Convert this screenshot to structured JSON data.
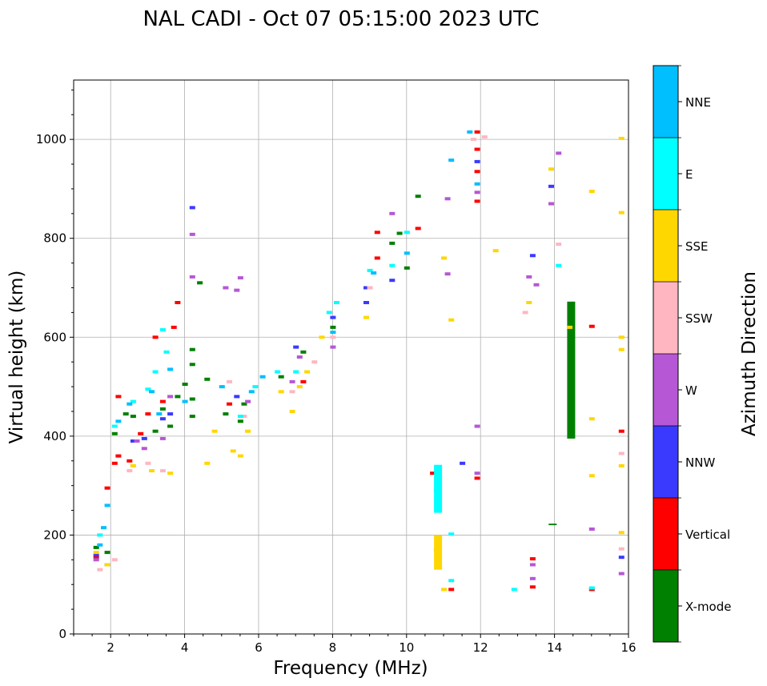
{
  "chart_data": {
    "type": "scatter",
    "title": "NAL CADI - Oct 07 05:15:00 2023 UTC",
    "xlabel": "Frequency (MHz)",
    "ylabel": "Virtual height (km)",
    "xlim": [
      1,
      16
    ],
    "ylim": [
      0,
      1120
    ],
    "xticks": [
      2,
      4,
      6,
      8,
      10,
      12,
      14,
      16
    ],
    "yticks": [
      0,
      200,
      400,
      600,
      800,
      1000
    ],
    "grid": true,
    "colorbar": {
      "label": "Azimuth Direction",
      "categories": [
        {
          "name": "X-mode",
          "color": "#008000"
        },
        {
          "name": "Vertical",
          "color": "#ff0000"
        },
        {
          "name": "NNW",
          "color": "#3a3aff"
        },
        {
          "name": "W",
          "color": "#b657d6"
        },
        {
          "name": "SSW",
          "color": "#ffb6c1"
        },
        {
          "name": "SSE",
          "color": "#ffd700"
        },
        {
          "name": "E",
          "color": "#00ffff"
        },
        {
          "name": "NNE",
          "color": "#00bfff"
        }
      ]
    },
    "series": [
      {
        "name": "X-mode",
        "points": [
          [
            1.6,
            175
          ],
          [
            1.9,
            165
          ],
          [
            2.1,
            405
          ],
          [
            2.4,
            445
          ],
          [
            2.6,
            440
          ],
          [
            3.2,
            410
          ],
          [
            3.4,
            455
          ],
          [
            3.6,
            420
          ],
          [
            3.8,
            480
          ],
          [
            4.0,
            505
          ],
          [
            4.2,
            440
          ],
          [
            4.2,
            475
          ],
          [
            4.2,
            545
          ],
          [
            4.2,
            575
          ],
          [
            4.4,
            710
          ],
          [
            4.6,
            515
          ],
          [
            5.1,
            445
          ],
          [
            5.5,
            430
          ],
          [
            5.6,
            465
          ],
          [
            6.6,
            520
          ],
          [
            7.2,
            570
          ],
          [
            8.0,
            620
          ],
          [
            9.6,
            790
          ],
          [
            9.8,
            810
          ],
          [
            10.0,
            740
          ],
          [
            10.3,
            885
          ]
        ],
        "bars": [
          {
            "x": 14.45,
            "y0": 395,
            "y1": 672
          },
          {
            "x": 13.95,
            "y0": 220,
            "y1": 223
          }
        ]
      },
      {
        "name": "Vertical",
        "points": [
          [
            1.6,
            155
          ],
          [
            1.9,
            295
          ],
          [
            2.1,
            345
          ],
          [
            2.2,
            360
          ],
          [
            2.2,
            480
          ],
          [
            2.5,
            350
          ],
          [
            2.8,
            405
          ],
          [
            3.0,
            445
          ],
          [
            3.2,
            600
          ],
          [
            3.4,
            470
          ],
          [
            3.7,
            620
          ],
          [
            3.8,
            670
          ],
          [
            5.2,
            465
          ],
          [
            7.2,
            510
          ],
          [
            9.2,
            760
          ],
          [
            9.2,
            812
          ],
          [
            10.3,
            820
          ],
          [
            10.7,
            325
          ],
          [
            11.2,
            90
          ],
          [
            11.9,
            1015
          ],
          [
            11.9,
            980
          ],
          [
            11.9,
            935
          ],
          [
            11.9,
            875
          ],
          [
            11.9,
            315
          ],
          [
            13.4,
            152
          ],
          [
            13.4,
            95
          ],
          [
            15.0,
            622
          ],
          [
            15.0,
            90
          ],
          [
            15.8,
            410
          ]
        ]
      },
      {
        "name": "NNW",
        "points": [
          [
            1.6,
            160
          ],
          [
            1.9,
            140
          ],
          [
            2.6,
            390
          ],
          [
            2.9,
            395
          ],
          [
            3.4,
            435
          ],
          [
            3.6,
            445
          ],
          [
            4.2,
            862
          ],
          [
            5.4,
            480
          ],
          [
            7.0,
            580
          ],
          [
            8.0,
            640
          ],
          [
            8.9,
            700
          ],
          [
            8.9,
            670
          ],
          [
            9.6,
            715
          ],
          [
            11.5,
            345
          ],
          [
            11.9,
            955
          ],
          [
            13.4,
            765
          ],
          [
            13.9,
            905
          ],
          [
            15.8,
            155
          ]
        ]
      },
      {
        "name": "W",
        "points": [
          [
            1.6,
            150
          ],
          [
            2.7,
            390
          ],
          [
            2.9,
            375
          ],
          [
            3.4,
            395
          ],
          [
            3.6,
            480
          ],
          [
            4.2,
            808
          ],
          [
            4.2,
            722
          ],
          [
            5.1,
            700
          ],
          [
            5.4,
            695
          ],
          [
            5.5,
            720
          ],
          [
            5.7,
            470
          ],
          [
            6.9,
            510
          ],
          [
            7.1,
            560
          ],
          [
            8.0,
            580
          ],
          [
            9.6,
            850
          ],
          [
            11.1,
            880
          ],
          [
            11.1,
            728
          ],
          [
            11.9,
            893
          ],
          [
            11.9,
            420
          ],
          [
            11.9,
            325
          ],
          [
            13.3,
            722
          ],
          [
            13.5,
            706
          ],
          [
            13.9,
            870
          ],
          [
            14.1,
            972
          ],
          [
            15.0,
            212
          ],
          [
            15.8,
            122
          ],
          [
            13.4,
            140
          ],
          [
            13.4,
            112
          ]
        ]
      },
      {
        "name": "SSW",
        "points": [
          [
            1.7,
            130
          ],
          [
            2.1,
            150
          ],
          [
            2.5,
            330
          ],
          [
            3.0,
            345
          ],
          [
            3.4,
            330
          ],
          [
            5.2,
            510
          ],
          [
            5.6,
            440
          ],
          [
            6.9,
            490
          ],
          [
            7.5,
            550
          ],
          [
            8.0,
            600
          ],
          [
            9.0,
            700
          ],
          [
            10.8,
            290
          ],
          [
            11.8,
            1000
          ],
          [
            12.1,
            1005
          ],
          [
            13.2,
            650
          ],
          [
            14.1,
            788
          ],
          [
            15.8,
            365
          ],
          [
            15.8,
            172
          ]
        ]
      },
      {
        "name": "SSE",
        "points": [
          [
            1.6,
            165
          ],
          [
            1.9,
            140
          ],
          [
            2.6,
            340
          ],
          [
            3.1,
            330
          ],
          [
            3.6,
            325
          ],
          [
            4.6,
            345
          ],
          [
            4.8,
            410
          ],
          [
            5.3,
            370
          ],
          [
            5.5,
            360
          ],
          [
            5.7,
            410
          ],
          [
            6.6,
            490
          ],
          [
            6.9,
            450
          ],
          [
            7.1,
            500
          ],
          [
            7.3,
            530
          ],
          [
            7.7,
            600
          ],
          [
            8.9,
            640
          ],
          [
            10.8,
            170
          ],
          [
            11.0,
            90
          ],
          [
            11.0,
            760
          ],
          [
            11.2,
            635
          ],
          [
            12.4,
            775
          ],
          [
            13.3,
            670
          ],
          [
            13.9,
            940
          ],
          [
            14.4,
            620
          ],
          [
            15.0,
            895
          ],
          [
            15.0,
            435
          ],
          [
            15.0,
            320
          ],
          [
            15.8,
            1002
          ],
          [
            15.8,
            852
          ],
          [
            15.8,
            600
          ],
          [
            15.8,
            575
          ],
          [
            15.8,
            340
          ],
          [
            15.8,
            205
          ]
        ],
        "bars": [
          {
            "x": 10.85,
            "y0": 130,
            "y1": 200
          }
        ]
      },
      {
        "name": "E",
        "points": [
          [
            1.7,
            200
          ],
          [
            2.1,
            420
          ],
          [
            2.6,
            470
          ],
          [
            3.0,
            495
          ],
          [
            3.2,
            530
          ],
          [
            3.5,
            570
          ],
          [
            3.4,
            615
          ],
          [
            5.5,
            440
          ],
          [
            5.9,
            500
          ],
          [
            6.5,
            530
          ],
          [
            7.0,
            530
          ],
          [
            7.9,
            650
          ],
          [
            8.1,
            670
          ],
          [
            9.0,
            735
          ],
          [
            9.6,
            745
          ],
          [
            10.0,
            812
          ],
          [
            11.2,
            202
          ],
          [
            11.2,
            108
          ],
          [
            12.9,
            90
          ],
          [
            14.1,
            745
          ],
          [
            15.0,
            93
          ]
        ],
        "bars": [
          {
            "x": 10.85,
            "y0": 245,
            "y1": 342
          }
        ]
      },
      {
        "name": "NNE",
        "points": [
          [
            1.7,
            180
          ],
          [
            1.8,
            215
          ],
          [
            1.9,
            260
          ],
          [
            2.2,
            430
          ],
          [
            2.5,
            465
          ],
          [
            3.1,
            490
          ],
          [
            3.3,
            445
          ],
          [
            3.6,
            535
          ],
          [
            4.0,
            470
          ],
          [
            5.0,
            500
          ],
          [
            5.8,
            490
          ],
          [
            6.1,
            520
          ],
          [
            8.0,
            610
          ],
          [
            9.1,
            730
          ],
          [
            10.0,
            770
          ],
          [
            11.2,
            958
          ],
          [
            11.7,
            1015
          ],
          [
            11.9,
            910
          ]
        ]
      }
    ]
  }
}
